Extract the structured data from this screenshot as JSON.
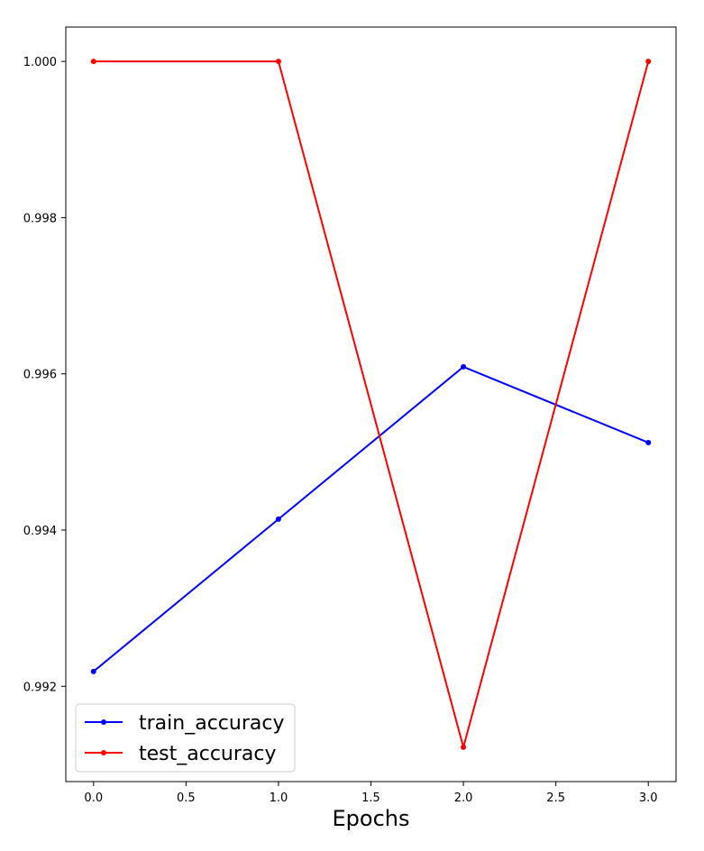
{
  "chart_data": {
    "type": "line",
    "title": "",
    "xlabel": "Epochs",
    "ylabel": "",
    "x": [
      0,
      1,
      2,
      3
    ],
    "series": [
      {
        "name": "train_accuracy",
        "color": "#0000ff",
        "marker": "dot",
        "values": [
          0.99219,
          0.99414,
          0.99609,
          0.99512
        ]
      },
      {
        "name": "test_accuracy",
        "color": "#ff0000",
        "marker": "dot",
        "values": [
          1.0,
          1.0,
          0.99122,
          1.0
        ]
      }
    ],
    "xlim": [
      -0.15,
      3.15
    ],
    "ylim": [
      0.99078,
      1.00044
    ],
    "xticks": [
      0.0,
      0.5,
      1.0,
      1.5,
      2.0,
      2.5,
      3.0
    ],
    "xtick_labels": [
      "0.0",
      "0.5",
      "1.0",
      "1.5",
      "2.0",
      "2.5",
      "3.0"
    ],
    "yticks": [
      0.992,
      0.994,
      0.996,
      0.998,
      1.0
    ],
    "ytick_labels": [
      "0.992",
      "0.994",
      "0.996",
      "0.998",
      "1.000"
    ],
    "grid": false,
    "legend_position": "lower-left"
  }
}
